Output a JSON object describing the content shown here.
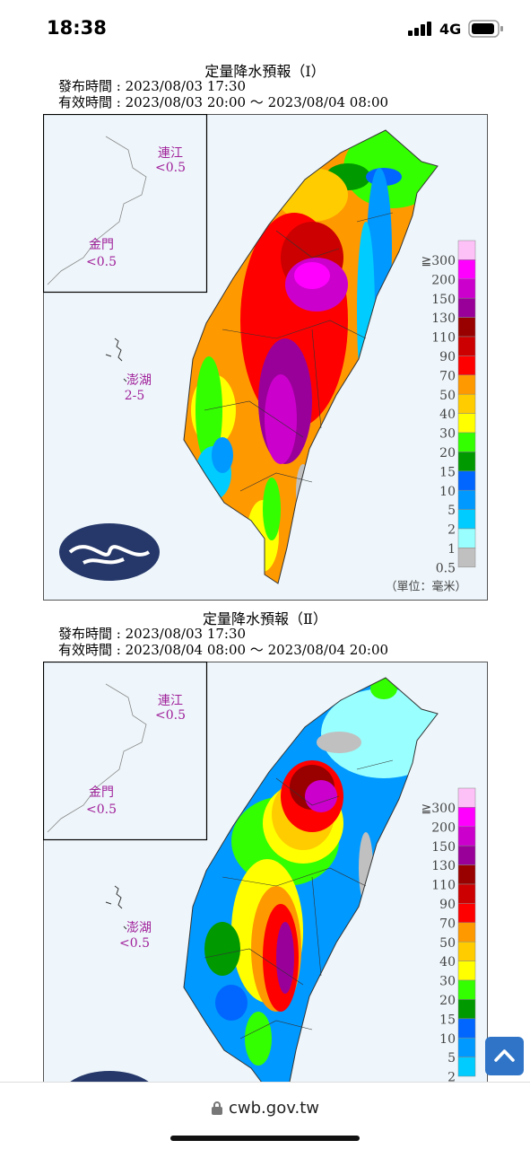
{
  "status_bar": {
    "time": "18:38",
    "network": "4G"
  },
  "panels": [
    {
      "title": "定量降水預報（Ⅰ）",
      "issued": "發布時間 : 2023/08/03 17:30",
      "valid": "有效時間 : 2023/08/03 20:00 〜 2023/08/04 08:00",
      "insets": [
        {
          "name": "連江",
          "value": "<0.5"
        },
        {
          "name": "金門",
          "value": "<0.5"
        },
        {
          "name": "澎湖",
          "value": "2-5"
        }
      ],
      "legend": [
        {
          "label": "≧300",
          "color": "#fdc0f7"
        },
        {
          "label": "200",
          "color": "#ff00ff"
        },
        {
          "label": "150",
          "color": "#cc00cc"
        },
        {
          "label": "130",
          "color": "#990099"
        },
        {
          "label": "110",
          "color": "#990000"
        },
        {
          "label": "90",
          "color": "#cc0000"
        },
        {
          "label": "70",
          "color": "#ff0000"
        },
        {
          "label": "50",
          "color": "#ff9900"
        },
        {
          "label": "40",
          "color": "#ffcc00"
        },
        {
          "label": "30",
          "color": "#ffff00"
        },
        {
          "label": "20",
          "color": "#33ff00"
        },
        {
          "label": "15",
          "color": "#009900"
        },
        {
          "label": "10",
          "color": "#0066ff"
        },
        {
          "label": "5",
          "color": "#0099ff"
        },
        {
          "label": "2",
          "color": "#00ccff"
        },
        {
          "label": "1",
          "color": "#99ffff"
        },
        {
          "label": "0.5",
          "color": "#c0c0c0"
        }
      ],
      "unit": "（單位：毫米）"
    },
    {
      "title": "定量降水預報（Ⅱ）",
      "issued": "發布時間 : 2023/08/03 17:30",
      "valid": "有效時間 : 2023/08/04 08:00 〜 2023/08/04 20:00",
      "insets": [
        {
          "name": "連江",
          "value": "<0.5"
        },
        {
          "name": "金門",
          "value": "<0.5"
        },
        {
          "name": "澎湖",
          "value": "<0.5"
        }
      ],
      "legend": [
        {
          "label": "≧300",
          "color": "#fdc0f7"
        },
        {
          "label": "200",
          "color": "#ff00ff"
        },
        {
          "label": "150",
          "color": "#cc00cc"
        },
        {
          "label": "130",
          "color": "#990099"
        },
        {
          "label": "110",
          "color": "#990000"
        },
        {
          "label": "90",
          "color": "#cc0000"
        },
        {
          "label": "70",
          "color": "#ff0000"
        },
        {
          "label": "50",
          "color": "#ff9900"
        },
        {
          "label": "40",
          "color": "#ffcc00"
        },
        {
          "label": "30",
          "color": "#ffff00"
        },
        {
          "label": "20",
          "color": "#33ff00"
        },
        {
          "label": "15",
          "color": "#009900"
        },
        {
          "label": "10",
          "color": "#0066ff"
        },
        {
          "label": "5",
          "color": "#0099ff"
        },
        {
          "label": "2",
          "color": "#00ccff"
        }
      ]
    }
  ],
  "footer": {
    "url": "cwb.gov.tw"
  }
}
